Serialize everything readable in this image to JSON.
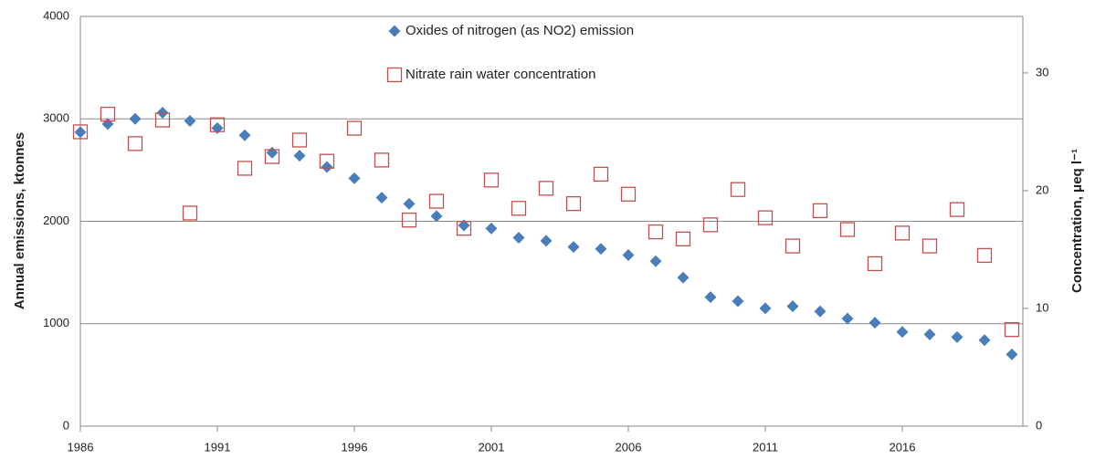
{
  "chart_data": {
    "type": "scatter",
    "y_label": "Annual emissions, ktonnes",
    "y2_label": "Concentration, μeq l⁻¹",
    "x": [
      1986,
      1987,
      1988,
      1989,
      1990,
      1991,
      1992,
      1993,
      1994,
      1995,
      1996,
      1997,
      1998,
      1999,
      2000,
      2001,
      2002,
      2003,
      2004,
      2005,
      2006,
      2007,
      2008,
      2009,
      2010,
      2011,
      2012,
      2013,
      2014,
      2015,
      2016,
      2017,
      2018,
      2019,
      2020
    ],
    "xlim": [
      1986,
      2020.4
    ],
    "xticks": [
      1986,
      1991,
      1996,
      2001,
      2006,
      2011,
      2016
    ],
    "ylim": [
      0,
      4000
    ],
    "yticks": [
      0,
      1000,
      2000,
      3000,
      4000
    ],
    "y2lim": [
      0,
      34.8
    ],
    "y2ticks": [
      0,
      10,
      20,
      30
    ],
    "grid": true,
    "legend": "top",
    "series": [
      {
        "name": "Oxides of nitrogen (as NO2) emission",
        "color": "#4a7ebb",
        "marker": "diamond",
        "values": [
          2870,
          2950,
          3000,
          3060,
          2980,
          2910,
          2840,
          2670,
          2640,
          2530,
          2420,
          2230,
          2170,
          2050,
          1960,
          1930,
          1840,
          1810,
          1750,
          1730,
          1670,
          1610,
          1450,
          1260,
          1220,
          1150,
          1170,
          1120,
          1050,
          1010,
          920,
          895,
          870,
          840,
          700
        ]
      },
      {
        "name": "Nitrate rain water concentration",
        "color": "#c0504d",
        "marker": "square",
        "axis": "y2",
        "values": [
          25.0,
          26.5,
          24.0,
          26.0,
          18.1,
          25.6,
          21.9,
          22.9,
          24.3,
          22.5,
          25.3,
          22.6,
          17.5,
          19.1,
          16.8,
          20.9,
          18.5,
          20.2,
          18.9,
          21.4,
          19.7,
          16.5,
          15.9,
          17.1,
          20.1,
          17.7,
          15.3,
          18.3,
          16.7,
          13.8,
          16.4,
          15.3,
          18.4,
          14.5,
          8.2
        ]
      }
    ]
  }
}
